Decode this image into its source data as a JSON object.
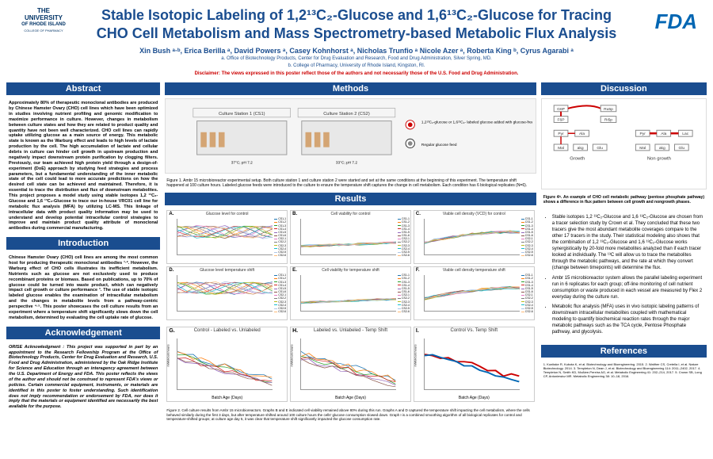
{
  "header": {
    "uni_line1": "THE",
    "uni_line2": "UNIVERSITY",
    "uni_line3": "OF RHODE ISLAND",
    "uni_line4": "COLLEGE OF PHARMACY",
    "fda": "FDA",
    "title": "Stable Isotopic Labeling of 1,2¹³C₂-Glucose and 1,6¹³C₂-Glucose for Tracing CHO Cell Metabolism and Mass Spectrometry-based Metabolic Flux Analysis",
    "authors": "Xin Bush ᵃ·ᵇ, Erica Berilla ᵃ, David Powers ᵃ, Casey Kohnhorst ᵃ, Nicholas Trunfio ᵃ Nicole Azer ᵃ, Roberta King ᵇ, Cyrus Agarabi ᵃ",
    "affil_a": "a. Office of Biotechnology Products, Center for Drug Evaluation and Research, Food and Drug Administration, Silver Spring, MD.",
    "affil_b": "b. College of Pharmacy, University of Rhode Island, Kingston, RI.",
    "disclaimer": "Disclaimer: The views expressed in this poster reflect those of the authors and not necessarily those of the U.S. Food and Drug Administration."
  },
  "sections": {
    "abstract": "Abstract",
    "intro": "Introduction",
    "ack": "Acknowledgement",
    "methods": "Methods",
    "results": "Results",
    "discussion": "Discussion",
    "refs": "References"
  },
  "abstract_text": "Approximately 80% of therapeutic monoclonal antibodies are produced by Chinese Hamster Ovary (CHO) cell lines which have been optimized in studies involving nutrient profiling and genomic modification to maximize performance in culture. However, changes in metabolism between culture states and how they are related to product quality and quantity have not been well characterized. CHO cell lines can rapidly uptake utilizing glucose as a main source of energy. This metabolic state is known as the Warburg effect and leads to high levels of lactate production by the cell. The high accumulation of lactate and cellular debris in culture can hinder cell growth in upstream production and negatively impact downstream protein purification by clogging filters. Previously, our team achieved high protein yield through a design-of-experiment (DoE) approach by studying feed strategies and process parameters, but a fundamental understanding of the inner metabolic state of the cell could lead to more accurate predictions on how the desired cell state can be achieved and maintained. Therefore, it is essential to trace the distribution and flux of downstream metabolites. This project proposes a model study using stable isotopes 1,2 ¹³C₂-Glucose and 1,6 ¹³C₂-Glucose to trace our in-house VRC01 cell line for metabolic flux analysis (MFA) by utilizing LC-MS. This linkage of intracellular data with product quality information may be used to understand and develop potential intracellular control strategies to improve and maintain product quality attribute of monoclonal antibodies during commercial manufacturing.",
  "intro_text": "Chinese Hamster Ovary (CHO) cell lines are among the most common host for producing therapeutic monoclonal antibodies ¹·². However, the Warburg effect of CHO cells illustrates its inefficient metabolism. Nutrients such as glucose are not exclusively used to produce recombinant proteins or biomass. Based on publications, up to 70% of glucose could be turned into waste product, which can negatively impact cell growth or culture performance ³. The use of stable isotopic labeled glucose enables the examination of intracellular metabolism and the changes in metabolite levels from a pathway-centric perspective ⁴·⁵. This poster showcases the cell culture results from an experiment where a temperature shift significantly slows down the cell metabolism, determined by evaluating the cell uptake rate of glucose.",
  "ack_text": "ORISE Acknowledgment : This project was supported in part by an appointment to the Research Fellowship Program at the Office of Biotechnology Products, Center for Drug Evaluation and Research, U.S. Food and Drug Administration, administered by the Oak Ridge Institute for Science and Education through an interagency agreement between the U.S. Department of Energy and FDA. This poster reflects the views of the author and should not be construed to represent FDA's views or policies. Certain commercial equipment, instruments, or materials are identified in this poster to foster understanding. Such identification does not imply recommendation or endorsement by FDA, nor does it imply that the materials or equipment identified are necessarily the best available for the purpose.",
  "methods": {
    "cs1_label": "Culture Station 1 (CS1)",
    "cs2_label": "Culture Station 2 (CS2)",
    "feed1": "1,2¹³C₂-glucose or 1,6¹³C₂- labeled glucose added with glucose-free feed",
    "feed2": "Regular glucose feed",
    "temp1": "37°C; pH 7.2",
    "temp2": "33°C; pH 7.2",
    "caption": "Figure 1. Ambr 15 microbioreactor experimental setup. Both culture station 1 and culture station 2 were started and set at the same conditions at the beginning of this experiment. The temperature shift happened at 100 culture hours. Labeled glucose feeds were introduced to the culture to ensure the temperature shift captures the change in cell metabolism. Each condition has 6 biological replicates (N=6)."
  },
  "charts": {
    "titles": [
      "Glucose level for control",
      "Cell viability for control",
      "Viable cell density (VCD) for control",
      "Glucose level temperature shift",
      "Cell viability for temperature shift",
      "Viable cell density temperature shift",
      "Control - Labeled vs. Unlabeled",
      "Labeled vs. Unlabeled - Temp Shift",
      "Control Vs. Temp Shift"
    ],
    "labels": [
      "A.",
      "B.",
      "C.",
      "D.",
      "E.",
      "F.",
      "G.",
      "H.",
      "I."
    ],
    "legend_items": [
      "CS1-1",
      "CS1-2",
      "CS1-3",
      "CS1-4",
      "CS1-5",
      "CS1-6",
      "CS2-1",
      "CS2-2",
      "CS2-3",
      "CS2-4",
      "CS2-5",
      "CS2-6"
    ],
    "colors": [
      "#1f77b4",
      "#ff7f0e",
      "#2ca02c",
      "#d62728",
      "#9467bd",
      "#8c564b",
      "#e377c2",
      "#7f7f7f",
      "#bcbd22",
      "#17becf",
      "#aec7e8",
      "#ffbb78"
    ],
    "xlabel": "Culture Hours",
    "xlabel_big": "Batch Age (Days)",
    "ylabel_big": "mMol/cell.hours",
    "caption": "Figure 2. Cell culture results from Ambr 15 microbioreactors. Graphs B and E indicated cell viability remained above 80% during this run. Graphs A and D captured the temperature shift impacting the cell metabolism, where the cells behaved similarly during the first 3 days, but after temperature shifted around 100 culture hours the cells' glucose consumption slowed down. Graph I is a combined smoothing algorithm of all biological replicates for control and temperature-shifted groups; at culture age day 5, it was clear that temperature shift significantly impacted the glucose consumption rate."
  },
  "discussion": {
    "fig_caption": "Figure 4ᴬ. An example of CHO cell metabolic pathway (pentose phosphate pathway) shows a difference in flux pattern between cell growth and nongrowth phases.",
    "bullet1": "Stable isotopes 1,2 ¹³C₂-Glucose and 1,6 ¹³C₂-Glucose are chosen from a tracer selection study by Crown et al. They concluded that these two tracers give the most abundant metabolite coverages compare to the other 17 tracers in the study. Their statistical modeling also shows that the combination of 1,2 ¹³C₂-Glucose and 1,6 ¹³C₂-Glucose works synergistically by 20-fold more metabolites analyzed than if each tracer looked at individually. The ¹³C will allow us to trace the metabolites through the metabolic pathways, and the rate at which they convert (change between timepoints) will determine the flux.",
    "bullet2": "Ambr 15 microbioreactor system allows the parallel labeling experiment run in 6 replicates for each group; off-line monitoring of cell nutrient consumption or waste produced in each vessel are measured by Flex 2 everyday during the culture run.",
    "bullet3": "Metabolic flux analysis (MFA) uses in vivo isotopic labeling patterns of downstream intracellular metabolites coupled with mathematical modeling to quantify biochemical reaction rates through the major metabolic pathways such as the TCA cycle, Pentose Phosphate pathway, and glycolysis.",
    "pathway_nodes": [
      "G6P",
      "F6P",
      "Ru5p",
      "Ri5p",
      "Pyr",
      "Pyr",
      "Ala",
      "Ala",
      "Mal",
      "akg",
      "Glu",
      "Mal",
      "akg",
      "Glu",
      "Growth",
      "Non growth",
      "Lac"
    ]
  },
  "refs_text": "1. Kunitake R, Kubota K, et al. Biotechnology and Bioengineering. 2015. 2. Walther CS, Cretella I, et al. Nature Biotechnology. 2014. 3. Templeton N, Dean J, et al. Biotechnology and Bioengineering 114: 2011–2402, 2017. 4. Templeton N, Smith KD, McAtee-Pereira AG, et al. Metabolic Engineering 41: 202–214, 2017. 5. Crown SB, Long CP, Antoniewicz MR. Metabolic Engineering 38: 10–18, 2016."
}
